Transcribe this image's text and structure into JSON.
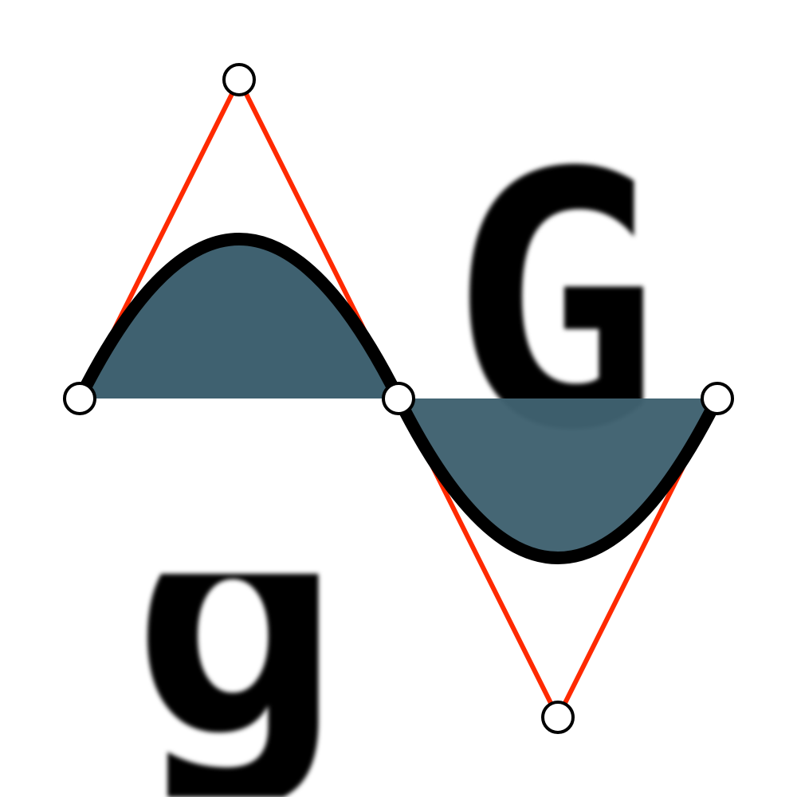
{
  "diagram": {
    "colors": {
      "fill": "#3f6170",
      "curve": "#000000",
      "control_lines": "#ff2a00",
      "point_fill": "#ffffff",
      "point_stroke": "#000000"
    },
    "glyphs": {
      "upper": "G",
      "lower": "g"
    }
  }
}
